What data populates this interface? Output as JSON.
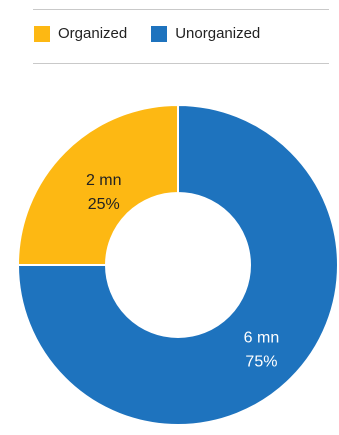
{
  "legend": {
    "items": [
      {
        "label": "Organized",
        "color": "#FDB813"
      },
      {
        "label": "Unorganized",
        "color": "#1E73BE"
      }
    ]
  },
  "chart_data": {
    "type": "pie",
    "donut": true,
    "title": "",
    "legend_position": "top",
    "categories": [
      "Organized",
      "Unorganized"
    ],
    "values": [
      2,
      6
    ],
    "percentages": [
      25,
      75
    ],
    "unit": "mn",
    "colors": [
      "#FDB813",
      "#1E73BE"
    ],
    "data_labels": [
      {
        "line1": "2 mn",
        "line2": "25%",
        "color": "#222222"
      },
      {
        "line1": "6 mn",
        "line2": "75%",
        "color": "#ffffff"
      }
    ]
  }
}
